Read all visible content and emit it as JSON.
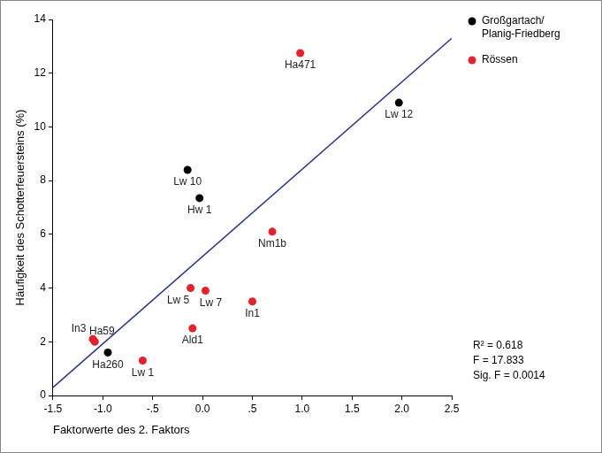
{
  "chart_data": {
    "type": "scatter",
    "x_label": "Faktorwerte des 2. Faktors",
    "y_label": "Häufigkeit des Schotterfeuersteins (%)",
    "series": [
      {
        "name": "Großgartach/Planig-Friedberg",
        "color": "#000000",
        "marker": "circle",
        "x": [
          1.97,
          -0.15,
          -0.03,
          -0.95
        ],
        "values": [
          10.9,
          8.4,
          7.35,
          1.6
        ],
        "labels": [
          "Lw 12",
          "Lw 10",
          "Hw 1",
          "Ha260"
        ]
      },
      {
        "name": "Rössen",
        "color": "#e8202a",
        "marker": "circle",
        "x": [
          0.98,
          0.7,
          -0.12,
          0.03,
          0.5,
          -0.1,
          -1.1,
          -1.08,
          -0.6
        ],
        "values": [
          12.75,
          6.1,
          4.0,
          3.9,
          3.5,
          2.5,
          2.1,
          2.0,
          1.3
        ],
        "labels": [
          "Ha471",
          "Nm1b",
          "Lw 5",
          "Lw 7",
          "In1",
          "Ald1",
          "In3",
          "Ha59",
          "Lw 1"
        ]
      },
      {
        "type": "line",
        "color": "#2b3a8f",
        "line_style": "solid",
        "x": [
          -1.5,
          2.5
        ],
        "values": [
          0.3,
          13.3
        ]
      }
    ],
    "xlim": [
      -1.5,
      2.5
    ],
    "xticks": [
      -1.5,
      {
        "value": -1,
        "label": "-1.0"
      },
      {
        "value": -0.5,
        "label": "-.5"
      },
      {
        "value": 0,
        "label": "0.0"
      },
      {
        "value": 0.5,
        "label": ".5"
      },
      {
        "value": 1,
        "label": "1.0"
      },
      1.5,
      {
        "value": 2,
        "label": "2.0"
      },
      2.5
    ],
    "ylim": [
      0,
      14
    ],
    "yticks": [
      0,
      2,
      4,
      6,
      8,
      10,
      12,
      14
    ],
    "grid": false,
    "legend": "right",
    "annotations": [
      "R² = 0.618",
      "F = 17.833",
      "Sig. F = 0.0014"
    ]
  }
}
